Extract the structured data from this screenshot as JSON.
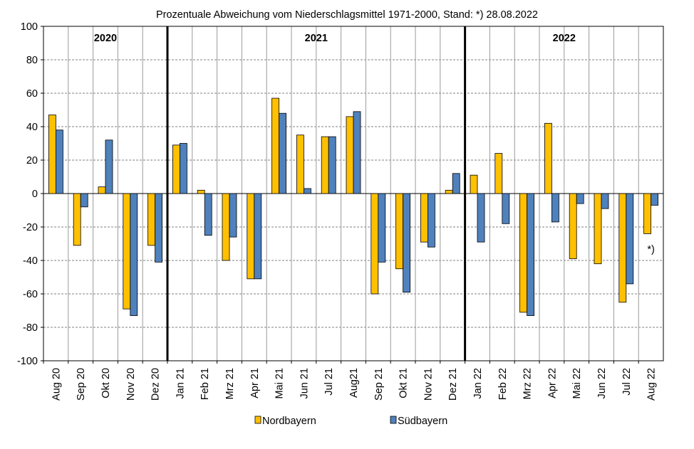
{
  "chart_data": {
    "type": "bar",
    "title": "Prozentuale Abweichung vom Niederschlagsmittel 1971-2000, Stand: *) 28.08.2022",
    "xlabel": "",
    "ylabel": "",
    "ylim": [
      -100,
      100
    ],
    "yticks": [
      100,
      80,
      60,
      40,
      20,
      0,
      -20,
      -40,
      -60,
      -80,
      -100
    ],
    "grid": true,
    "legend_position": "bottom",
    "categories": [
      "Aug 20",
      "Sep 20",
      "Okt 20",
      "Nov 20",
      "Dez 20",
      "Jan 21",
      "Feb 21",
      "Mrz 21",
      "Apr 21",
      "Mai 21",
      "Jun 21",
      "Jul 21",
      "Aug21",
      "Sep 21",
      "Okt 21",
      "Nov 21",
      "Dez 21",
      "Jan 22",
      "Feb 22",
      "Mrz 22",
      "Apr 22",
      "Mai 22",
      "Jun 22",
      "Jul 22",
      "Aug 22"
    ],
    "series": [
      {
        "name": "Nordbayern",
        "color": "#FFC000",
        "values": [
          47,
          -31,
          4,
          -69,
          -31,
          29,
          2,
          -40,
          -51,
          57,
          35,
          34,
          46,
          -60,
          -45,
          -29,
          2,
          11,
          24,
          -71,
          42,
          -39,
          -42,
          -65,
          -24
        ]
      },
      {
        "name": "Südbayern",
        "color": "#4F81BD",
        "values": [
          38,
          -8,
          32,
          -73,
          -41,
          30,
          -25,
          -26,
          -51,
          48,
          3,
          34,
          49,
          -41,
          -59,
          -32,
          12,
          -29,
          -18,
          -73,
          -17,
          -6,
          -9,
          -54,
          -7
        ]
      }
    ],
    "year_labels": [
      {
        "text": "2020",
        "start": 0,
        "end": 4
      },
      {
        "text": "2021",
        "start": 5,
        "end": 16
      },
      {
        "text": "2022",
        "start": 17,
        "end": 24
      }
    ],
    "annotations": [
      {
        "text": "*)",
        "category_index": 24
      }
    ]
  },
  "colors": {
    "border": "#000000",
    "grid": "#808080",
    "bar_outline": "#000000"
  }
}
